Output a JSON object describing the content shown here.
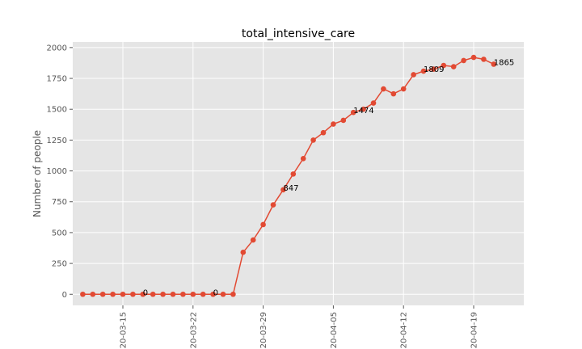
{
  "chart_data": {
    "type": "line",
    "title": "total_intensive_care",
    "xlabel": "",
    "ylabel": "Number of people",
    "grid": true,
    "ylim": [
      -90,
      2045
    ],
    "xlim": [
      "2020-03-10",
      "2020-04-24"
    ],
    "yticks": [
      0,
      250,
      500,
      750,
      1000,
      1250,
      1500,
      1750,
      2000
    ],
    "xticks": [
      {
        "date": "2020-03-15",
        "label": "20-03-15"
      },
      {
        "date": "2020-03-22",
        "label": "20-03-22"
      },
      {
        "date": "2020-03-29",
        "label": "20-03-29"
      },
      {
        "date": "2020-04-05",
        "label": "20-04-05"
      },
      {
        "date": "2020-04-12",
        "label": "20-04-12"
      },
      {
        "date": "2020-04-19",
        "label": "20-04-19"
      }
    ],
    "series": [
      {
        "color": "#e24a33",
        "x": [
          "2020-03-11",
          "2020-03-12",
          "2020-03-13",
          "2020-03-14",
          "2020-03-15",
          "2020-03-16",
          "2020-03-17",
          "2020-03-18",
          "2020-03-19",
          "2020-03-20",
          "2020-03-21",
          "2020-03-22",
          "2020-03-23",
          "2020-03-24",
          "2020-03-25",
          "2020-03-26",
          "2020-03-27",
          "2020-03-28",
          "2020-03-29",
          "2020-03-30",
          "2020-03-31",
          "2020-04-01",
          "2020-04-02",
          "2020-04-03",
          "2020-04-04",
          "2020-04-05",
          "2020-04-06",
          "2020-04-07",
          "2020-04-08",
          "2020-04-09",
          "2020-04-10",
          "2020-04-11",
          "2020-04-12",
          "2020-04-13",
          "2020-04-14",
          "2020-04-15",
          "2020-04-16",
          "2020-04-17",
          "2020-04-18",
          "2020-04-19",
          "2020-04-20",
          "2020-04-21"
        ],
        "values": [
          0,
          0,
          0,
          0,
          0,
          0,
          0,
          0,
          0,
          0,
          0,
          0,
          0,
          0,
          0,
          0,
          340,
          440,
          565,
          725,
          847,
          975,
          1100,
          1250,
          1310,
          1380,
          1410,
          1474,
          1500,
          1550,
          1665,
          1625,
          1665,
          1780,
          1809,
          1825,
          1855,
          1845,
          1895,
          1920,
          1905,
          1865
        ]
      }
    ],
    "annotations": [
      {
        "date": "2020-03-17",
        "value": 0,
        "label": "0"
      },
      {
        "date": "2020-03-24",
        "value": 0,
        "label": "0"
      },
      {
        "date": "2020-03-31",
        "value": 847,
        "label": "847"
      },
      {
        "date": "2020-04-07",
        "value": 1474,
        "label": "1474"
      },
      {
        "date": "2020-04-14",
        "value": 1809,
        "label": "1809"
      },
      {
        "date": "2020-04-21",
        "value": 1865,
        "label": "1865"
      }
    ]
  }
}
